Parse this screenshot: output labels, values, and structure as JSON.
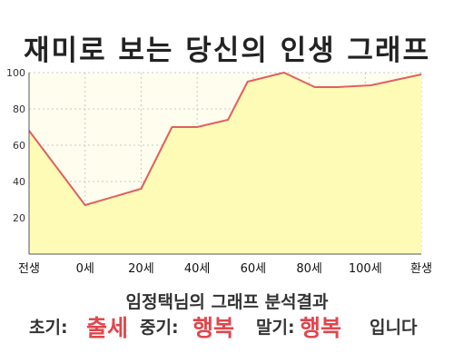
{
  "title": "재미로 보는 당신의 인생 그래프",
  "chart_data": {
    "type": "area",
    "x_tick_labels": [
      "전생",
      "0세",
      "20세",
      "40세",
      "60세",
      "80세",
      "100세",
      "환생"
    ],
    "y_ticks": [
      20,
      40,
      60,
      80,
      100
    ],
    "ylim": [
      0,
      100
    ],
    "x": [
      0,
      1,
      2,
      2.55,
      3,
      3.55,
      3.9,
      4.55,
      5.1,
      5.5,
      6.1,
      7
    ],
    "values": [
      68,
      27,
      36,
      70,
      70,
      74,
      95,
      100,
      92,
      92,
      93,
      99
    ],
    "grid": true,
    "colors": {
      "line": "#e06060",
      "fill": "#fdfbb6",
      "plot_bg": "#fffdee"
    }
  },
  "result_text": "임정택님의 그래프 분석결과",
  "summary": {
    "early_label": "초기:",
    "early_value": "출세",
    "mid_label": "중기:",
    "mid_value": "행복",
    "late_label": "말기:",
    "late_value": "행복",
    "ending": "입니다"
  }
}
